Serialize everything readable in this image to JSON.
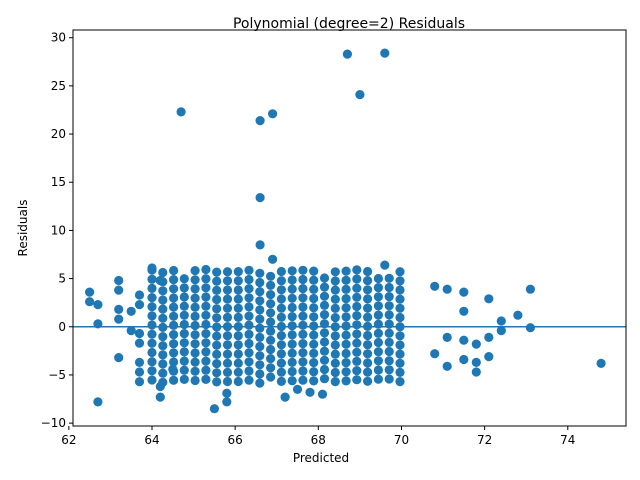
{
  "chart_data": {
    "type": "scatter",
    "title": "Polynomial (degree=2) Residuals",
    "xlabel": "Predicted",
    "ylabel": "Residuals",
    "xlim": [
      62.1,
      75.4
    ],
    "ylim": [
      -10.3,
      30.8
    ],
    "xticks": [
      62,
      64,
      66,
      68,
      70,
      72,
      74
    ],
    "yticks": [
      -10,
      -5,
      0,
      5,
      10,
      15,
      20,
      25,
      30
    ],
    "reference_line": {
      "y": 0
    },
    "point_color": "#1f77b4",
    "outliers": [
      [
        64.7,
        22.3
      ],
      [
        66.6,
        21.4
      ],
      [
        66.9,
        22.1
      ],
      [
        66.6,
        13.4
      ],
      [
        66.6,
        8.5
      ],
      [
        68.7,
        28.3
      ],
      [
        69.0,
        24.1
      ],
      [
        69.6,
        28.4
      ],
      [
        74.8,
        -3.8
      ],
      [
        62.7,
        -7.8
      ],
      [
        65.5,
        -8.5
      ],
      [
        65.8,
        -7.8
      ],
      [
        65.8,
        -6.9
      ],
      [
        64.2,
        -7.3
      ],
      [
        64.2,
        -6.2
      ],
      [
        67.2,
        -7.3
      ],
      [
        67.8,
        -6.8
      ],
      [
        68.1,
        -7.0
      ],
      [
        67.5,
        -6.5
      ],
      [
        64.0,
        6.1
      ],
      [
        66.9,
        7.0
      ],
      [
        69.6,
        6.4
      ],
      [
        62.5,
        3.6
      ],
      [
        62.5,
        2.6
      ],
      [
        62.7,
        2.3
      ],
      [
        62.7,
        0.3
      ],
      [
        73.1,
        3.9
      ],
      [
        73.1,
        -0.1
      ],
      [
        72.4,
        0.6
      ],
      [
        72.4,
        -0.4
      ],
      [
        72.8,
        1.2
      ],
      [
        72.1,
        2.9
      ],
      [
        72.1,
        -1.1
      ],
      [
        72.1,
        -3.1
      ],
      [
        71.8,
        -3.7
      ],
      [
        71.8,
        -4.7
      ],
      [
        71.8,
        -1.8
      ],
      [
        71.5,
        3.6
      ],
      [
        71.5,
        1.6
      ],
      [
        71.5,
        -1.4
      ],
      [
        71.5,
        -3.4
      ],
      [
        71.1,
        3.9
      ],
      [
        71.1,
        -1.1
      ],
      [
        71.1,
        -4.1
      ],
      [
        70.8,
        4.2
      ],
      [
        70.8,
        -2.8
      ],
      [
        63.2,
        4.8
      ],
      [
        63.2,
        3.8
      ],
      [
        63.2,
        1.8
      ],
      [
        63.2,
        0.8
      ],
      [
        63.2,
        -3.2
      ],
      [
        63.5,
        1.6
      ],
      [
        63.5,
        -0.4
      ],
      [
        63.7,
        3.3
      ],
      [
        63.7,
        2.3
      ],
      [
        63.7,
        -0.7
      ],
      [
        63.7,
        -1.7
      ],
      [
        63.7,
        -3.7
      ],
      [
        63.7,
        -4.7
      ],
      [
        63.7,
        -5.7
      ],
      [
        64.2,
        4.8
      ],
      [
        64.5,
        -4.4
      ]
    ],
    "grid_xrange": [
      64.0,
      70.2
    ],
    "grid_step": 0.2593,
    "grid_yrange": [
      -5.8,
      6.0
    ],
    "grid_ystep": 0.95,
    "total_points": 700
  }
}
